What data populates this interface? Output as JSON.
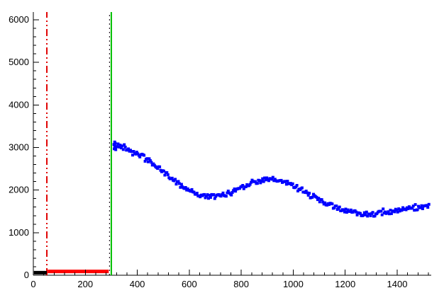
{
  "chart_data": {
    "type": "scatter",
    "title": "",
    "xlabel": "",
    "ylabel": "",
    "xlim": [
      0,
      1531
    ],
    "ylim": [
      0,
      6183
    ],
    "grid": false,
    "legend": null,
    "background": "#ffffff",
    "frame_color": "#000000",
    "x_ticks": {
      "major": 200,
      "minor": 40,
      "labels": [
        "0",
        "200",
        "400",
        "600",
        "800",
        "1000",
        "1200",
        "1400"
      ]
    },
    "y_ticks": {
      "major": 1000,
      "minor": 200,
      "labels": [
        "0",
        "1000",
        "2000",
        "3000",
        "4000",
        "5000",
        "6000"
      ]
    },
    "vlines": [
      {
        "name": "red-dashdot-cut-line",
        "x": 52,
        "color": "#e00000",
        "style": "dash-dot-dot",
        "width": 2
      },
      {
        "name": "black-dotted-cut-line",
        "x": 293,
        "color": "#000000",
        "style": "dotted",
        "width": 1
      },
      {
        "name": "green-threshold-line",
        "x": 300,
        "color": "#00bf00",
        "style": "solid",
        "width": 2
      }
    ],
    "series": [
      {
        "name": "black-low-segment",
        "type": "hline",
        "color": "#000000",
        "width": 5,
        "x_from": 2,
        "x_to": 52,
        "y": 60
      },
      {
        "name": "red-baseline-segment",
        "type": "hline",
        "color": "#ff0000",
        "width": 5,
        "x_from": 55,
        "x_to": 290,
        "y": 90
      },
      {
        "name": "blue-signal-scatter",
        "type": "scatter-band",
        "color": "#0000ff",
        "marker_size": 4,
        "x_start": 310,
        "x_end": 1522,
        "x_step": 4,
        "noise_amp": 55,
        "noise_seed": 42,
        "control_points": [
          [
            310,
            3060
          ],
          [
            330,
            3040
          ],
          [
            360,
            2980
          ],
          [
            400,
            2860
          ],
          [
            440,
            2720
          ],
          [
            480,
            2520
          ],
          [
            520,
            2330
          ],
          [
            560,
            2150
          ],
          [
            600,
            2000
          ],
          [
            640,
            1880
          ],
          [
            680,
            1840
          ],
          [
            720,
            1860
          ],
          [
            760,
            1950
          ],
          [
            800,
            2080
          ],
          [
            840,
            2180
          ],
          [
            880,
            2230
          ],
          [
            920,
            2250
          ],
          [
            960,
            2200
          ],
          [
            1000,
            2120
          ],
          [
            1040,
            1990
          ],
          [
            1080,
            1840
          ],
          [
            1120,
            1700
          ],
          [
            1160,
            1600
          ],
          [
            1200,
            1520
          ],
          [
            1240,
            1470
          ],
          [
            1280,
            1440
          ],
          [
            1320,
            1440
          ],
          [
            1360,
            1470
          ],
          [
            1400,
            1510
          ],
          [
            1440,
            1550
          ],
          [
            1480,
            1590
          ],
          [
            1522,
            1640
          ]
        ],
        "extra_points": [
          [
            311,
            2970
          ],
          [
            312,
            3060
          ],
          [
            313,
            3130
          ],
          [
            314,
            3010
          ],
          [
            315,
            3100
          ],
          [
            317,
            2950
          ]
        ]
      }
    ]
  }
}
